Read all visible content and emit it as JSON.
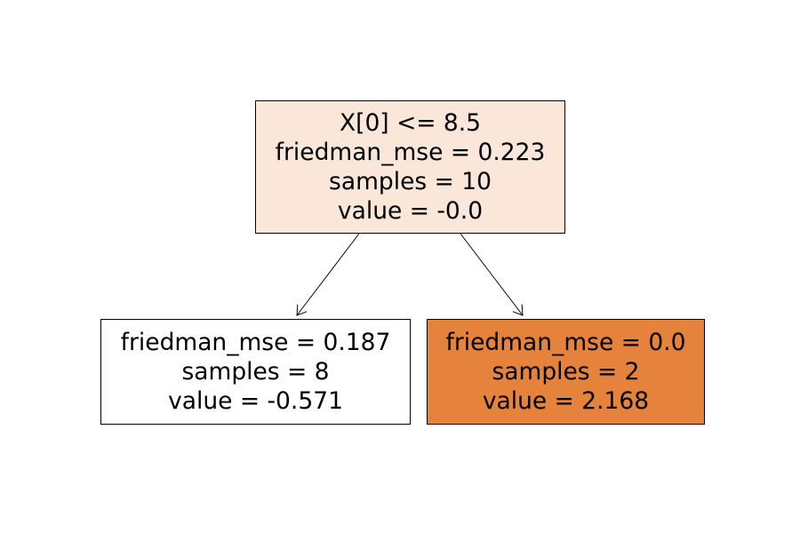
{
  "tree": {
    "root": {
      "lines": [
        "X[0] <= 8.5",
        "friedman_mse = 0.223",
        "samples = 10",
        "value = -0.0"
      ],
      "fill": "#fbe6da"
    },
    "left": {
      "lines": [
        "friedman_mse = 0.187",
        "samples = 8",
        "value = -0.571"
      ],
      "fill": "#ffffff"
    },
    "right": {
      "lines": [
        "friedman_mse = 0.0",
        "samples = 2",
        "value = 2.168"
      ],
      "fill": "#e5823b"
    },
    "edge_color": "#000000"
  }
}
